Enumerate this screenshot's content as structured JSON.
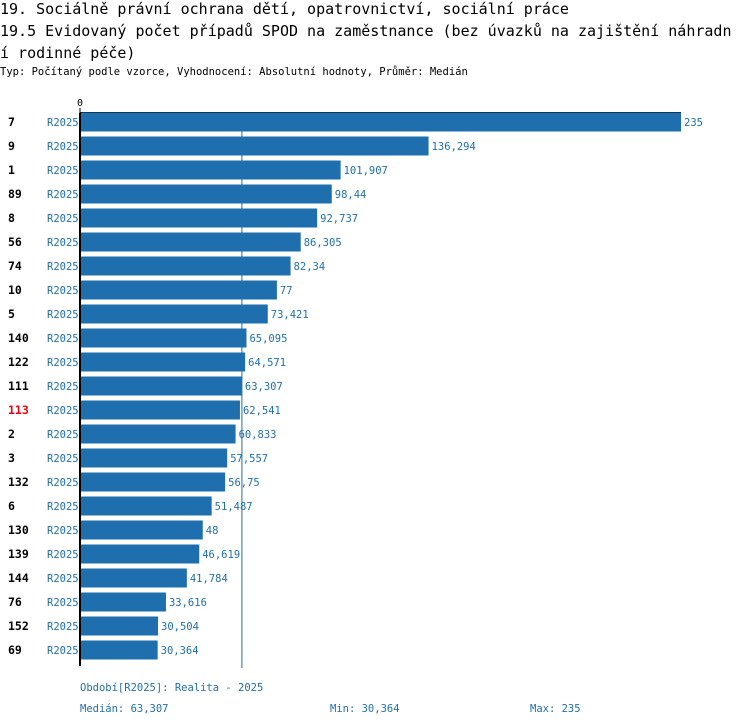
{
  "title_lines": [
    "19. Sociálně právní ochrana dětí, opatrovnictví, sociální práce",
    "19.5 Evidovaný počet případů SPOD na zaměstnance (bez úvazků na zajištění náhradn",
    "í rodinné péče)"
  ],
  "subtitle": "Typ: Počítaný podle vzorce, Vyhodnocení: Absolutní hodnoty, Průměr: Medián",
  "colors": {
    "bar": "#1f6fae",
    "value_text": "#1f6fae",
    "highlight": "#e8000b",
    "axis": "#000000",
    "median_line": "#1f6fae"
  },
  "chart_data": {
    "type": "bar",
    "orientation": "horizontal",
    "x_tick_label": "0",
    "xlim": [
      0,
      235
    ],
    "series_label": "R2025",
    "categories": [
      "7",
      "9",
      "1",
      "89",
      "8",
      "56",
      "74",
      "10",
      "5",
      "140",
      "122",
      "111",
      "113",
      "2",
      "3",
      "132",
      "6",
      "130",
      "139",
      "144",
      "76",
      "152",
      "69"
    ],
    "highlighted_category": "113",
    "values": [
      235,
      136.294,
      101.907,
      98.44,
      92.737,
      86.305,
      82.34,
      77,
      73.421,
      65.095,
      64.571,
      63.307,
      62.541,
      60.833,
      57.557,
      56.75,
      51.487,
      48,
      46.619,
      41.784,
      33.616,
      30.504,
      30.364
    ],
    "value_labels": [
      "235",
      "136,294",
      "101,907",
      "98,44",
      "92,737",
      "86,305",
      "82,34",
      "77",
      "73,421",
      "65,095",
      "64,571",
      "63,307",
      "62,541",
      "60,833",
      "57,557",
      "56,75",
      "51,487",
      "48",
      "46,619",
      "41,784",
      "33,616",
      "30,504",
      "30,364"
    ],
    "median": 63.307
  },
  "footer": {
    "period": "Období[R2025]: Realita - 2025",
    "median": "Medián: 63,307",
    "min": "Min: 30,364",
    "max": "Max: 235"
  }
}
